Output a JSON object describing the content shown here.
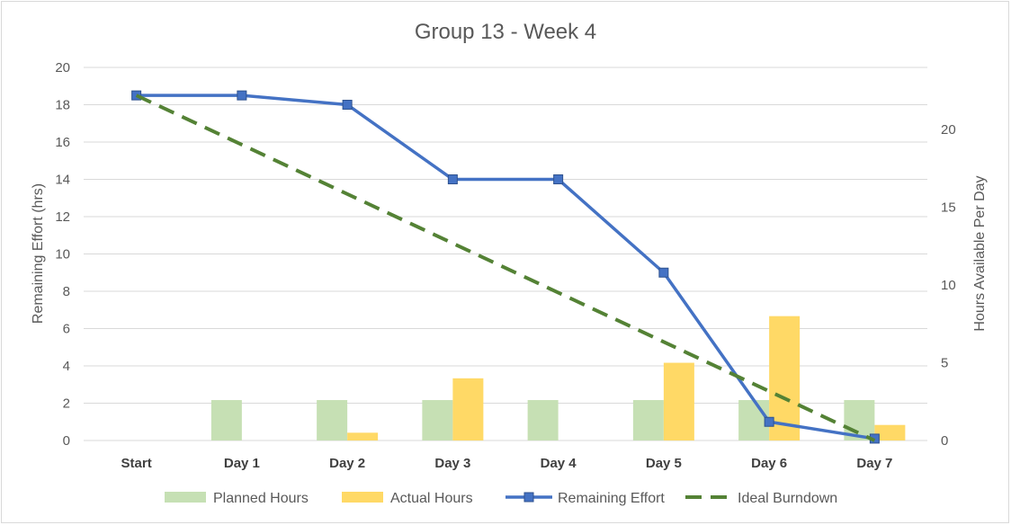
{
  "chart_data": {
    "type": "bar",
    "title": "Group 13 - Week 4",
    "categories": [
      "Start",
      "Day 1",
      "Day 2",
      "Day 3",
      "Day 4",
      "Day 5",
      "Day 6",
      "Day 7"
    ],
    "ylabel": "Remaining Effort (hrs)",
    "y2label": "Hours Available Per Day",
    "ylim": [
      0,
      20
    ],
    "y2lim": [
      0,
      24
    ],
    "yticks": [
      0,
      2,
      4,
      6,
      8,
      10,
      12,
      14,
      16,
      18,
      20
    ],
    "y2ticks": [
      0,
      5,
      10,
      15,
      20
    ],
    "series": [
      {
        "name": "Planned Hours",
        "type": "bar",
        "axis": "secondary",
        "color": "#c6e0b4",
        "values": [
          0,
          2.6,
          2.6,
          2.6,
          2.6,
          2.6,
          2.6,
          2.6
        ]
      },
      {
        "name": "Actual Hours",
        "type": "bar",
        "axis": "secondary",
        "color": "#ffd966",
        "values": [
          0,
          0,
          0.5,
          4,
          0,
          5,
          8,
          1
        ]
      },
      {
        "name": "Remaining Effort",
        "type": "line",
        "axis": "primary",
        "color": "#4472c4",
        "values": [
          18.5,
          18.5,
          18,
          14,
          14,
          9,
          1,
          0.1
        ]
      },
      {
        "name": "Ideal Burndown",
        "type": "line-dashed",
        "axis": "primary",
        "color": "#548235",
        "values": [
          18.5,
          null,
          null,
          null,
          null,
          null,
          null,
          0
        ]
      }
    ],
    "grid": true,
    "legend": "bottom"
  }
}
